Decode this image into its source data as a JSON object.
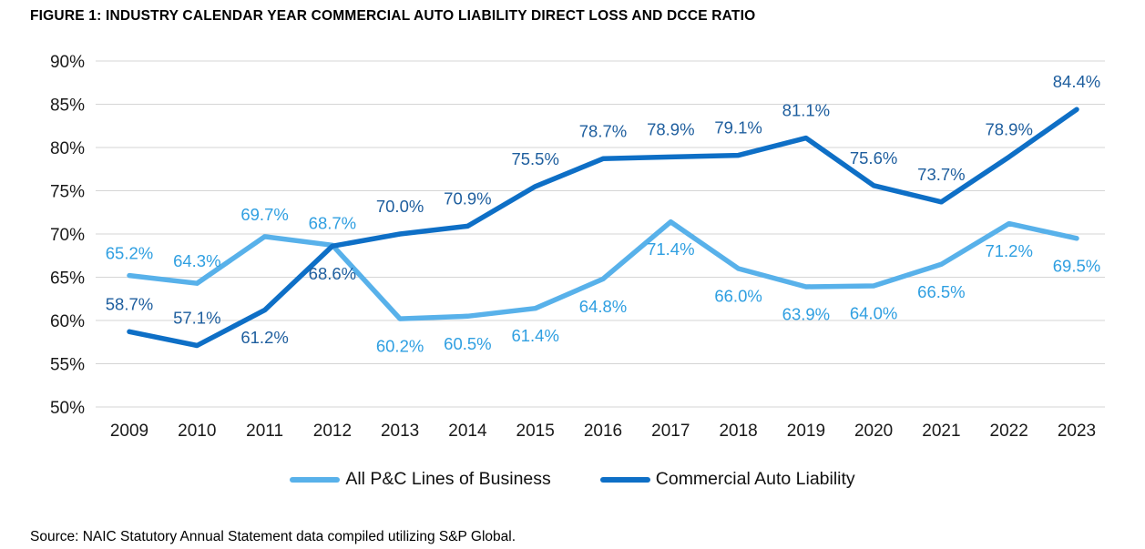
{
  "title": "FIGURE 1: INDUSTRY CALENDAR YEAR COMMERCIAL AUTO LIABILITY DIRECT LOSS AND DCCE RATIO",
  "source": "Source: NAIC Statutory Annual Statement data compiled utilizing S&P Global.",
  "legend": [
    {
      "label": "All P&C Lines of Business",
      "color": "#58B1EA"
    },
    {
      "label": "Commercial Auto Liability",
      "color": "#0E6FC6"
    }
  ],
  "chart_data": {
    "type": "line",
    "title": "FIGURE 1: INDUSTRY CALENDAR YEAR COMMERCIAL AUTO LIABILITY DIRECT LOSS AND DCCE RATIO",
    "xlabel": "",
    "ylabel": "",
    "categories": [
      "2009",
      "2010",
      "2011",
      "2012",
      "2013",
      "2014",
      "2015",
      "2016",
      "2017",
      "2018",
      "2019",
      "2020",
      "2021",
      "2022",
      "2023"
    ],
    "series": [
      {
        "id": "all-pc-lines",
        "name": "All P&C Lines of Business",
        "color": "#58B1EA",
        "label_color": "#2F9FE1",
        "values": [
          65.2,
          64.3,
          69.7,
          68.7,
          60.2,
          60.5,
          61.4,
          64.8,
          71.4,
          66.0,
          63.9,
          64.0,
          66.5,
          71.2,
          69.5
        ],
        "label_side": [
          "above",
          "above",
          "above",
          "above",
          "below",
          "below",
          "below",
          "below",
          "below",
          "below",
          "below",
          "below",
          "below",
          "below",
          "below"
        ]
      },
      {
        "id": "commercial-auto-liability",
        "name": "Commercial Auto Liability",
        "color": "#0E6FC6",
        "label_color": "#1E5E9E",
        "values": [
          58.7,
          57.1,
          61.2,
          68.6,
          70.0,
          70.9,
          75.5,
          78.7,
          78.9,
          79.1,
          81.1,
          75.6,
          73.7,
          78.9,
          84.4
        ],
        "label_side": [
          "above",
          "above",
          "below",
          "below",
          "above",
          "above",
          "above",
          "above",
          "above",
          "above",
          "above",
          "above",
          "above",
          "above",
          "above"
        ]
      }
    ],
    "ylim": [
      50,
      90
    ],
    "ytick_step": 5,
    "ytick_suffix": "%",
    "value_suffix": "%",
    "grid": true,
    "legend_position": "bottom"
  }
}
